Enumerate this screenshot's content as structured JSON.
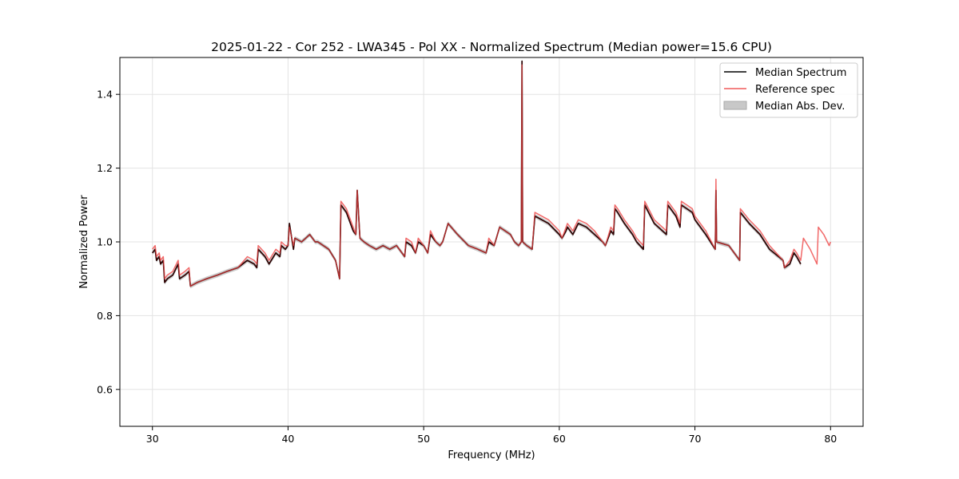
{
  "chart_data": {
    "type": "line",
    "title": "2025-01-22 - Cor 252 - LWA345 - Pol XX - Normalized Spectrum (Median power=15.6 CPU)",
    "xlabel": "Frequency (MHz)",
    "ylabel": "Normalized Power",
    "xlim": [
      27.6,
      82.4
    ],
    "ylim": [
      0.5,
      1.5
    ],
    "xticks": [
      30,
      40,
      50,
      60,
      70,
      80
    ],
    "yticks": [
      0.6,
      0.8,
      1.0,
      1.2,
      1.4
    ],
    "xtick_labels": [
      "30",
      "40",
      "50",
      "60",
      "70",
      "80"
    ],
    "ytick_labels": [
      "0.6",
      "0.8",
      "1.0",
      "1.2",
      "1.4"
    ],
    "grid": true,
    "legend_position": "top-right",
    "series": [
      {
        "name": "Median Spectrum",
        "color": "#000000",
        "x": [
          30.0,
          30.2,
          30.3,
          30.5,
          30.6,
          30.8,
          30.9,
          31.1,
          31.5,
          31.9,
          32.0,
          32.4,
          32.7,
          32.8,
          33.3,
          34.0,
          34.8,
          35.5,
          36.3,
          37.0,
          37.5,
          37.7,
          37.8,
          38.3,
          38.6,
          39.1,
          39.4,
          39.5,
          39.8,
          40.0,
          40.1,
          40.4,
          40.5,
          41.0,
          41.3,
          41.6,
          42.0,
          42.2,
          43.0,
          43.5,
          43.8,
          43.9,
          44.3,
          44.8,
          45.0,
          45.1,
          45.3,
          45.6,
          46.0,
          46.5,
          47.0,
          47.5,
          48.0,
          48.6,
          48.7,
          49.1,
          49.4,
          49.6,
          50.0,
          50.3,
          50.5,
          50.9,
          51.2,
          51.4,
          51.8,
          52.5,
          53.3,
          54.0,
          54.6,
          54.8,
          55.2,
          55.6,
          56.0,
          56.4,
          56.7,
          57.0,
          57.2,
          57.25,
          57.3,
          57.6,
          58.0,
          58.2,
          59.2,
          60.0,
          60.2,
          60.5,
          60.6,
          61.0,
          61.4,
          62.0,
          62.3,
          62.6,
          63.2,
          63.4,
          63.8,
          64.0,
          64.1,
          64.3,
          64.8,
          65.4,
          65.7,
          66.2,
          66.3,
          67.0,
          67.9,
          68.0,
          68.6,
          68.9,
          69.0,
          69.8,
          70.0,
          70.8,
          71.5,
          71.55,
          71.6,
          72.5,
          73.3,
          73.35,
          74.0,
          74.8,
          75.5,
          76.5,
          76.6,
          77.0,
          77.3,
          77.5,
          77.8
        ],
        "y": [
          0.97,
          0.98,
          0.95,
          0.96,
          0.94,
          0.95,
          0.89,
          0.9,
          0.91,
          0.94,
          0.9,
          0.91,
          0.92,
          0.88,
          0.89,
          0.9,
          0.91,
          0.92,
          0.93,
          0.95,
          0.94,
          0.93,
          0.98,
          0.96,
          0.94,
          0.97,
          0.96,
          0.99,
          0.98,
          0.99,
          1.05,
          0.98,
          1.01,
          1.0,
          1.01,
          1.02,
          1.0,
          1.0,
          0.98,
          0.95,
          0.9,
          1.1,
          1.08,
          1.03,
          1.02,
          1.14,
          1.01,
          1.0,
          0.99,
          0.98,
          0.99,
          0.98,
          0.99,
          0.96,
          1.0,
          0.99,
          0.97,
          1.0,
          0.99,
          0.97,
          1.02,
          1.0,
          0.99,
          1.0,
          1.05,
          1.02,
          0.99,
          0.98,
          0.97,
          1.0,
          0.99,
          1.04,
          1.03,
          1.02,
          1.0,
          0.99,
          1.0,
          1.49,
          1.0,
          0.99,
          0.98,
          1.07,
          1.05,
          1.02,
          1.01,
          1.03,
          1.04,
          1.02,
          1.05,
          1.04,
          1.03,
          1.02,
          1.0,
          0.99,
          1.03,
          1.02,
          1.09,
          1.08,
          1.05,
          1.02,
          1.0,
          0.98,
          1.1,
          1.05,
          1.02,
          1.1,
          1.07,
          1.04,
          1.1,
          1.08,
          1.06,
          1.02,
          0.98,
          1.14,
          1.0,
          0.99,
          0.95,
          1.08,
          1.05,
          1.02,
          0.98,
          0.95,
          0.93,
          0.94,
          0.97,
          0.96,
          0.94
        ]
      },
      {
        "name": "Reference spec",
        "color": "#f05a5a",
        "x": [
          30.0,
          30.2,
          30.3,
          30.5,
          30.6,
          30.8,
          30.9,
          31.1,
          31.5,
          31.9,
          32.0,
          32.4,
          32.7,
          32.8,
          33.3,
          34.0,
          34.8,
          35.5,
          36.3,
          37.0,
          37.5,
          37.7,
          37.8,
          38.3,
          38.6,
          39.1,
          39.4,
          39.5,
          39.8,
          40.0,
          40.1,
          40.4,
          40.5,
          41.0,
          41.3,
          41.6,
          42.0,
          42.2,
          43.0,
          43.5,
          43.8,
          43.9,
          44.3,
          44.8,
          45.0,
          45.1,
          45.3,
          45.6,
          46.0,
          46.5,
          47.0,
          47.5,
          48.0,
          48.6,
          48.7,
          49.1,
          49.4,
          49.6,
          50.0,
          50.3,
          50.5,
          50.9,
          51.2,
          51.4,
          51.8,
          52.5,
          53.3,
          54.0,
          54.6,
          54.8,
          55.2,
          55.6,
          56.0,
          56.4,
          56.7,
          57.0,
          57.2,
          57.25,
          57.3,
          57.6,
          58.0,
          58.2,
          59.2,
          60.0,
          60.2,
          60.5,
          60.6,
          61.0,
          61.4,
          62.0,
          62.3,
          62.6,
          63.2,
          63.4,
          63.8,
          64.0,
          64.1,
          64.3,
          64.8,
          65.4,
          65.7,
          66.2,
          66.3,
          67.0,
          67.9,
          68.0,
          68.6,
          68.9,
          69.0,
          69.8,
          70.0,
          70.8,
          71.5,
          71.55,
          71.6,
          72.5,
          73.3,
          73.35,
          74.0,
          74.8,
          75.5,
          76.5,
          76.6,
          77.0,
          77.3,
          77.5,
          77.8,
          78.0,
          78.5,
          79.0,
          79.1,
          79.5,
          79.9,
          80.0
        ],
        "y": [
          0.98,
          0.99,
          0.96,
          0.97,
          0.95,
          0.96,
          0.9,
          0.91,
          0.92,
          0.95,
          0.91,
          0.92,
          0.93,
          0.88,
          0.89,
          0.9,
          0.91,
          0.92,
          0.93,
          0.96,
          0.95,
          0.94,
          0.99,
          0.97,
          0.95,
          0.98,
          0.97,
          1.0,
          0.99,
          0.99,
          1.04,
          0.99,
          1.01,
          1.0,
          1.01,
          1.02,
          1.0,
          1.0,
          0.98,
          0.95,
          0.9,
          1.11,
          1.09,
          1.04,
          1.02,
          1.14,
          1.01,
          1.0,
          0.99,
          0.98,
          0.99,
          0.98,
          0.99,
          0.96,
          1.01,
          1.0,
          0.97,
          1.01,
          0.99,
          0.97,
          1.03,
          1.0,
          0.99,
          1.0,
          1.05,
          1.02,
          0.99,
          0.98,
          0.97,
          1.01,
          0.99,
          1.04,
          1.03,
          1.02,
          1.0,
          0.99,
          1.0,
          1.48,
          1.0,
          0.99,
          0.98,
          1.08,
          1.06,
          1.03,
          1.01,
          1.04,
          1.05,
          1.03,
          1.06,
          1.05,
          1.04,
          1.03,
          1.0,
          0.99,
          1.04,
          1.03,
          1.1,
          1.09,
          1.06,
          1.03,
          1.01,
          0.99,
          1.11,
          1.06,
          1.03,
          1.11,
          1.08,
          1.05,
          1.11,
          1.09,
          1.07,
          1.03,
          0.98,
          1.17,
          1.0,
          0.99,
          0.95,
          1.09,
          1.06,
          1.03,
          0.99,
          0.95,
          0.93,
          0.95,
          0.98,
          0.97,
          0.95,
          1.01,
          0.98,
          0.94,
          1.04,
          1.02,
          0.99,
          1.0
        ]
      }
    ],
    "band": {
      "name": "Median Abs. Dev.",
      "color": "#c0c0c0",
      "half_width": 0.006
    }
  }
}
